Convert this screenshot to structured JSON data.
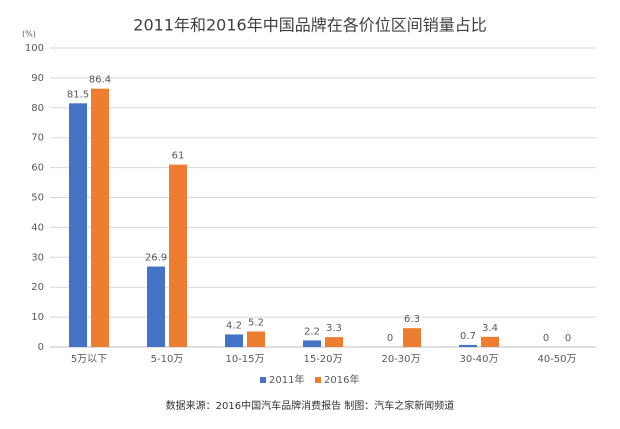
{
  "chart_data": {
    "type": "bar",
    "title": "2011年和2016年中国品牌在各价位区间销量占比",
    "y_unit": "(%)",
    "categories": [
      "5万以下",
      "5-10万",
      "10-15万",
      "15-20万",
      "20-30万",
      "30-40万",
      "40-50万"
    ],
    "series": [
      {
        "name": "2011年",
        "color": "#4472c4",
        "values": [
          81.5,
          26.9,
          4.2,
          2.2,
          0,
          0.7,
          0
        ]
      },
      {
        "name": "2016年",
        "color": "#ed7d31",
        "values": [
          86.4,
          61,
          5.2,
          3.3,
          6.3,
          3.4,
          0
        ]
      }
    ],
    "ylim": [
      0,
      100
    ],
    "yticks": [
      0,
      10,
      20,
      30,
      40,
      50,
      60,
      70,
      80,
      90,
      100
    ],
    "grid": true,
    "legend": "bottom",
    "source": "数据来源：2016中国汽车品牌消费报告  制图：汽车之家新闻频道"
  }
}
